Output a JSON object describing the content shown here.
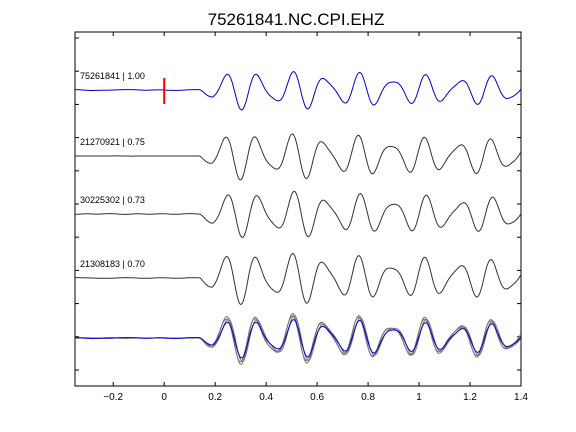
{
  "chart_data": {
    "type": "line",
    "title": "75261841.NC.CPI.EHZ",
    "xlabel": "",
    "ylabel": "",
    "xlim": [
      -0.35,
      1.4
    ],
    "grid": false,
    "x_ticks": [
      -0.2,
      0,
      0.2,
      0.4,
      0.6,
      0.8,
      1.0,
      1.2,
      1.4
    ],
    "x_tick_labels": [
      "−0.2",
      "0",
      "0.2",
      "0.4",
      "0.6",
      "0.8",
      "1",
      "1.2",
      "1.4"
    ],
    "pick_marker": {
      "x": 0,
      "color": "#ff0000"
    },
    "colors": {
      "master": "#0000cc",
      "other": "#333333",
      "stack": "#777777"
    },
    "traces": [
      {
        "label": "75261841 | 1.00",
        "id": "75261841",
        "cc": 1.0,
        "color": "#0000cc",
        "stacked": true
      },
      {
        "label": "21270921 | 0.75",
        "id": "21270921",
        "cc": 0.75,
        "color": "#333333",
        "stacked": true
      },
      {
        "label": "30225302 | 0.73",
        "id": "30225302",
        "cc": 0.73,
        "color": "#333333",
        "stacked": true
      },
      {
        "label": "21308183 | 0.70",
        "id": "21308183",
        "cc": 0.7,
        "color": "#333333",
        "stacked": true
      }
    ]
  }
}
